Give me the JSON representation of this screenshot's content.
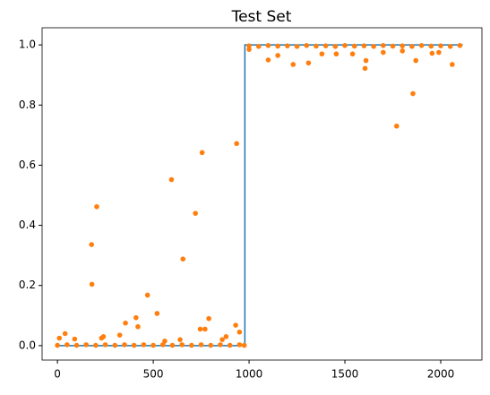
{
  "chart_data": {
    "type": "scatter",
    "title": "Test Set",
    "xlim": [
      -80,
      2215
    ],
    "ylim": [
      -0.048,
      1.057
    ],
    "xticks": [
      0,
      500,
      1000,
      1500,
      2000
    ],
    "yticks": [
      {
        "value": 0,
        "label": "0.0"
      },
      {
        "value": 0.2,
        "label": "0.2"
      },
      {
        "value": 0.4,
        "label": "0.4"
      },
      {
        "value": 0.6,
        "label": "0.6"
      },
      {
        "value": 0.8,
        "label": "0.8"
      },
      {
        "value": 1,
        "label": "1.0"
      }
    ],
    "series": [
      {
        "type": "line",
        "color": "#1f77b4",
        "x": [
          0,
          978,
          978,
          2115
        ],
        "values": [
          0,
          0,
          1,
          1
        ]
      },
      {
        "type": "scatter",
        "color": "#ff7f0e",
        "x": [
          0,
          50,
          100,
          150,
          200,
          250,
          300,
          350,
          400,
          450,
          500,
          550,
          600,
          650,
          700,
          750,
          800,
          850,
          900,
          950,
          975,
          178,
          180,
          205,
          595,
          655,
          720,
          755,
          935,
          470,
          520,
          410,
          420,
          355,
          40,
          10,
          90,
          240,
          230,
          325,
          770,
          790,
          745,
          950,
          880,
          930,
          860,
          640,
          560,
          1000,
          1050,
          1100,
          1150,
          1200,
          1250,
          1300,
          1350,
          1400,
          1450,
          1500,
          1550,
          1600,
          1650,
          1700,
          1750,
          1800,
          1850,
          1900,
          1950,
          2000,
          2050,
          2100,
          1770,
          1855,
          1605,
          1610,
          2060,
          1870,
          1100,
          1230,
          1310,
          1150,
          1380,
          1455,
          1540,
          1955,
          1990,
          1000,
          1700,
          1800
        ],
        "values": [
          0.001,
          0.003,
          0.001,
          0.003,
          0.001,
          0.003,
          0.001,
          0.003,
          0.001,
          0.003,
          0.001,
          0.003,
          0.001,
          0.003,
          0.001,
          0.003,
          0.001,
          0.003,
          0.001,
          0.003,
          0.001,
          0.336,
          0.204,
          0.462,
          0.552,
          0.288,
          0.44,
          0.642,
          0.672,
          0.168,
          0.107,
          0.093,
          0.063,
          0.075,
          0.04,
          0.025,
          0.022,
          0.03,
          0.025,
          0.035,
          0.055,
          0.09,
          0.055,
          0.045,
          0.03,
          0.068,
          0.02,
          0.02,
          0.015,
          0.997,
          0.995,
          0.998,
          0.996,
          0.997,
          0.995,
          0.998,
          0.996,
          0.997,
          0.995,
          0.998,
          0.996,
          0.997,
          0.995,
          0.998,
          0.996,
          0.997,
          0.995,
          0.998,
          0.996,
          0.997,
          0.995,
          0.998,
          0.73,
          0.838,
          0.922,
          0.948,
          0.935,
          0.948,
          0.95,
          0.935,
          0.94,
          0.965,
          0.97,
          0.97,
          0.97,
          0.972,
          0.975,
          0.985,
          0.975,
          0.98
        ]
      }
    ]
  }
}
